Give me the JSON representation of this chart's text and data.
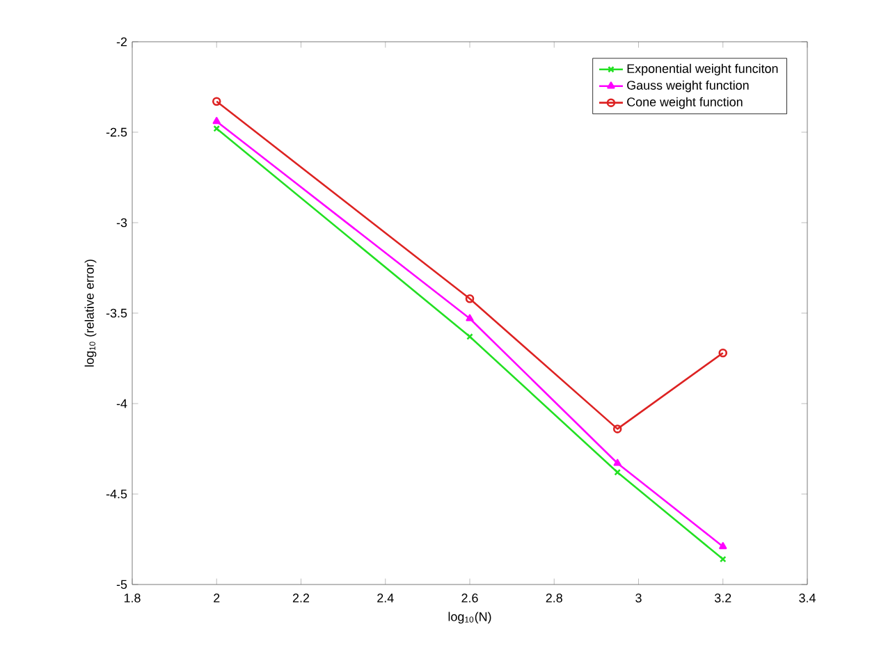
{
  "chart_data": {
    "type": "line",
    "xlabel": "log$_{10}$(N)",
    "ylabel": "log$_{10}$ (relative error)",
    "xlim": [
      1.8,
      3.4
    ],
    "xticks": [
      1.8,
      2,
      2.2,
      2.4,
      2.6,
      2.8,
      3,
      3.2,
      3.4
    ],
    "ylim": [
      -5,
      -2
    ],
    "yticks": [
      -5,
      -4.5,
      -4,
      -3.5,
      -3,
      -2.5,
      -2
    ],
    "x": [
      2,
      2.6,
      2.95,
      3.2
    ],
    "legend": "top right",
    "grid": false,
    "line_style": "solid",
    "series": [
      {
        "name": "Exponential weight funciton",
        "color": "#22e022",
        "marker": "cross",
        "values": [
          -2.48,
          -3.63,
          -4.38,
          -4.86
        ]
      },
      {
        "name": "Gauss weight function",
        "color": "#ff00ff",
        "marker": "triangle",
        "values": [
          -2.44,
          -3.53,
          -4.33,
          -4.79
        ]
      },
      {
        "name": "Cone weight function",
        "color": "#dd2222",
        "marker": "circle",
        "values": [
          -2.33,
          -3.42,
          -4.14,
          -3.72
        ]
      }
    ]
  }
}
